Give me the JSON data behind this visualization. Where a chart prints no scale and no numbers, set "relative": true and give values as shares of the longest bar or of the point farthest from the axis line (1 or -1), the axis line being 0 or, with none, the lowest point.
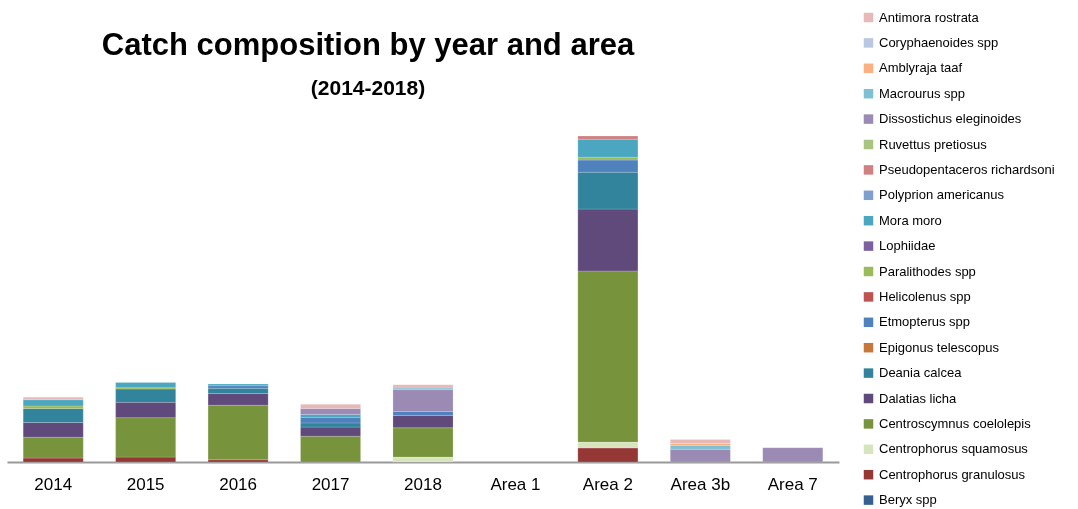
{
  "chart_data": {
    "type": "bar",
    "title": "Catch composition by year and area",
    "subtitle": "(2014-2018)",
    "categories": [
      "2014",
      "2015",
      "2016",
      "2017",
      "2018",
      "Area 1",
      "Area 2",
      "Area 3b",
      "Area 7"
    ],
    "stacked": true,
    "relative": true,
    "legend": "right",
    "grid": false,
    "series": [
      {
        "name": "Beryx spp",
        "color": "#376092",
        "values": [
          null,
          null,
          null,
          null,
          null,
          null,
          null,
          null,
          null
        ]
      },
      {
        "name": "Centrophorus granulosus",
        "color": "#953735",
        "values": [
          0.012,
          0.015,
          0.007,
          null,
          null,
          null,
          0.043,
          null,
          null
        ]
      },
      {
        "name": "Centrophorus squamosus",
        "color": "#d7e4bd",
        "values": [
          null,
          null,
          null,
          null,
          0.015,
          null,
          0.018,
          null,
          null
        ]
      },
      {
        "name": "Centroscymnus coelolepis",
        "color": "#77933c",
        "values": [
          0.064,
          0.121,
          0.167,
          0.079,
          0.09,
          null,
          0.525,
          null,
          null
        ]
      },
      {
        "name": "Dalatias licha",
        "color": "#604a7b",
        "values": [
          0.045,
          0.047,
          0.036,
          0.028,
          0.038,
          null,
          0.19,
          null,
          null
        ]
      },
      {
        "name": "Deania calcea",
        "color": "#31849b",
        "values": [
          0.043,
          0.041,
          0.016,
          0.013,
          null,
          null,
          0.113,
          null,
          null
        ]
      },
      {
        "name": "Epigonus telescopus",
        "color": "#c8773a",
        "values": [
          null,
          null,
          null,
          null,
          null,
          null,
          null,
          null,
          null
        ]
      },
      {
        "name": "Etmopterus spp",
        "color": "#4f81bd",
        "values": [
          null,
          null,
          0.008,
          0.017,
          0.012,
          null,
          0.037,
          null,
          null
        ]
      },
      {
        "name": "Helicolenus spp",
        "color": "#c0504d",
        "values": [
          null,
          null,
          null,
          null,
          null,
          null,
          null,
          null,
          null
        ]
      },
      {
        "name": "Paralithodes spp",
        "color": "#9bbb59",
        "values": [
          0.008,
          0.004,
          null,
          null,
          null,
          null,
          0.009,
          null,
          null
        ]
      },
      {
        "name": "Lophiidae",
        "color": "#7d60a0",
        "values": [
          null,
          null,
          null,
          null,
          null,
          null,
          null,
          null,
          null
        ]
      },
      {
        "name": "Mora moro",
        "color": "#4aa7bf",
        "values": [
          0.019,
          0.016,
          0.005,
          0.009,
          null,
          null,
          0.055,
          null,
          null
        ]
      },
      {
        "name": "Polyprion americanus",
        "color": "#7f9fcf",
        "values": [
          null,
          null,
          null,
          null,
          null,
          null,
          null,
          null,
          null
        ]
      },
      {
        "name": "Pseudopentaceros richardsoni",
        "color": "#d08080",
        "values": [
          null,
          null,
          null,
          null,
          null,
          null,
          0.01,
          null,
          null
        ]
      },
      {
        "name": "Ruvettus pretiosus",
        "color": "#a9c47f",
        "values": [
          null,
          null,
          null,
          null,
          null,
          null,
          null,
          null,
          null
        ]
      },
      {
        "name": "Dissostichus eleginoides",
        "color": "#9b8ab4",
        "values": [
          null,
          null,
          null,
          0.018,
          0.067,
          null,
          null,
          0.039,
          0.044
        ]
      },
      {
        "name": "Macrourus spp",
        "color": "#7fc0d4",
        "values": [
          null,
          null,
          null,
          null,
          0.005,
          null,
          null,
          0.012,
          null
        ]
      },
      {
        "name": "Amblyraja taaf",
        "color": "#fab080",
        "values": [
          null,
          null,
          null,
          null,
          null,
          null,
          null,
          0.006,
          null
        ]
      },
      {
        "name": "Coryphaenoides spp",
        "color": "#b9c8e0",
        "values": [
          null,
          null,
          null,
          null,
          null,
          null,
          null,
          null,
          null
        ]
      },
      {
        "name": "Antimora rostrata",
        "color": "#e6b9b8",
        "values": [
          0.008,
          null,
          null,
          0.013,
          0.01,
          null,
          null,
          0.012,
          null
        ]
      }
    ]
  }
}
